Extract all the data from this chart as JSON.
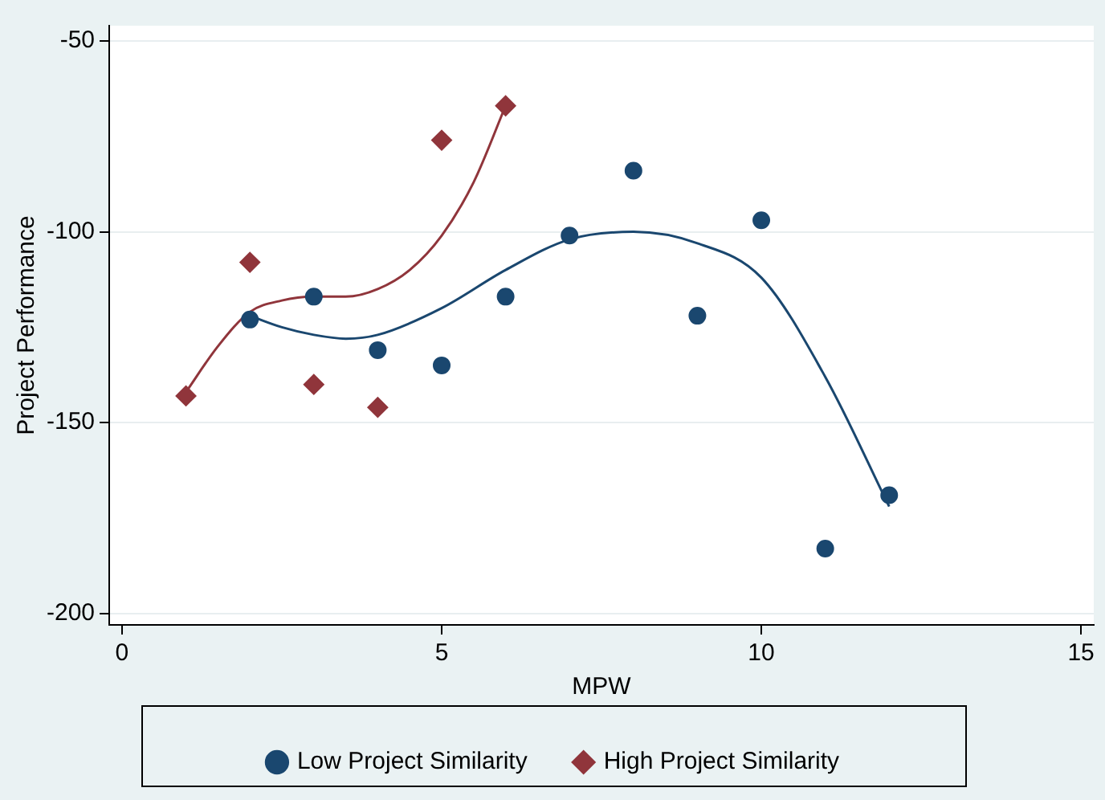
{
  "chart_data": {
    "type": "scatter",
    "xlabel": "MPW",
    "ylabel": "Project Performance",
    "xlim": [
      -0.2,
      15.2
    ],
    "xticks": [
      0,
      5,
      10,
      15
    ],
    "ylim": [
      -203,
      -46
    ],
    "yticks": [
      -50,
      -100,
      -150,
      -200
    ],
    "grid": "y",
    "legend": "bottom",
    "series": [
      {
        "name": "Low Project Similarity",
        "color": "#1a476f",
        "marker": "circle",
        "x": [
          2,
          3,
          4,
          5,
          6,
          7,
          8,
          9,
          10,
          11,
          12
        ],
        "values": [
          -123,
          -117,
          -131,
          -135,
          -117,
          -101,
          -84,
          -122,
          -97,
          -183,
          -169
        ]
      },
      {
        "name": "High Project Similarity",
        "color": "#90353b",
        "marker": "diamond",
        "x": [
          1,
          2,
          3,
          4,
          5,
          6
        ],
        "values": [
          -143,
          -108,
          -140,
          -146,
          -76,
          -67
        ]
      },
      {
        "type": "line",
        "color": "#1a476f",
        "marker": "none",
        "line_style": "solid",
        "x": [
          2,
          2.5,
          3,
          3.5,
          4,
          5,
          6,
          7,
          8,
          9,
          10,
          11,
          12
        ],
        "values": [
          -122,
          -125,
          -127,
          -128,
          -127,
          -120,
          -110,
          -102,
          -100,
          -103,
          -112,
          -138,
          -172
        ]
      },
      {
        "type": "line",
        "color": "#90353b",
        "marker": "none",
        "line_style": "solid",
        "x": [
          1,
          1.5,
          2,
          2.5,
          3,
          3.5,
          4,
          4.5,
          5,
          5.5,
          6
        ],
        "values": [
          -142,
          -130,
          -121,
          -118,
          -117,
          -117,
          -115,
          -110,
          -101,
          -87,
          -67
        ]
      }
    ]
  }
}
